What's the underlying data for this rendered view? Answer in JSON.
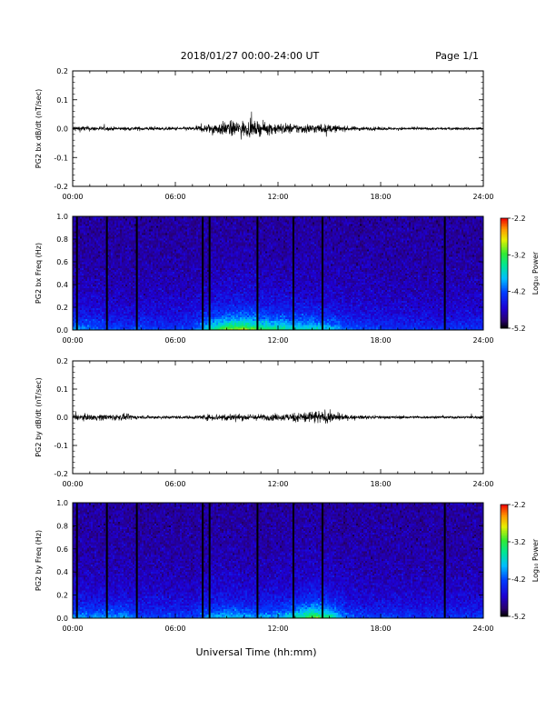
{
  "header": {
    "date_range": "2018/01/27  00:00-24:00 UT",
    "page": "Page 1/1"
  },
  "x_axis": {
    "ticks": [
      "00:00",
      "06:00",
      "12:00",
      "18:00",
      "24:00"
    ],
    "label": "Universal Time (hh:mm)"
  },
  "chart_data": [
    {
      "type": "line",
      "ylabel": "PG2 bx dB/dt (nT/sec)",
      "ylim": [
        -0.2,
        0.2
      ],
      "yticks": [
        "0.2",
        "0.1",
        "0.0",
        "-0.1",
        "-0.2"
      ],
      "xlim_hours": [
        0,
        24
      ],
      "series": [
        {
          "x_hours": [
            0,
            1,
            2,
            3,
            4,
            5,
            6,
            7,
            8,
            9,
            10,
            11,
            12,
            13,
            14,
            15,
            16,
            17,
            18,
            19,
            20,
            21,
            22,
            23,
            24
          ],
          "amplitude": [
            0.02,
            0.015,
            0.012,
            0.01,
            0.012,
            0.01,
            0.01,
            0.012,
            0.03,
            0.045,
            0.05,
            0.04,
            0.035,
            0.03,
            0.03,
            0.025,
            0.015,
            0.012,
            0.01,
            0.008,
            0.008,
            0.008,
            0.008,
            0.008,
            0.008
          ]
        }
      ]
    },
    {
      "type": "heatmap",
      "ylabel": "PG2 bx Freq (Hz)",
      "ylim": [
        0.0,
        1.0
      ],
      "yticks": [
        "1.0",
        "0.8",
        "0.6",
        "0.4",
        "0.2",
        "0.0"
      ],
      "xlim_hours": [
        0,
        24
      ],
      "colorbar": {
        "label": "Log₁₀ Power",
        "ticks": [
          "-2.2",
          "-3.2",
          "-4.2",
          "-5.2"
        ],
        "range": [
          -5.2,
          -2.2
        ]
      },
      "gap_lines_hours": [
        0.25,
        2,
        3.75,
        7.6,
        8,
        10.8,
        12.9,
        14.6,
        21.75
      ]
    },
    {
      "type": "line",
      "ylabel": "PG2 by dB/dt (nT/sec)",
      "ylim": [
        -0.2,
        0.2
      ],
      "yticks": [
        "0.2",
        "0.1",
        "0.0",
        "-0.1",
        "-0.2"
      ],
      "xlim_hours": [
        0,
        24
      ],
      "series": [
        {
          "x_hours": [
            0,
            1,
            2,
            3,
            4,
            5,
            6,
            7,
            8,
            9,
            10,
            11,
            12,
            13,
            14,
            15,
            16,
            17,
            18,
            19,
            20,
            21,
            22,
            23,
            24
          ],
          "amplitude": [
            0.02,
            0.018,
            0.02,
            0.02,
            0.01,
            0.01,
            0.01,
            0.01,
            0.02,
            0.025,
            0.02,
            0.02,
            0.02,
            0.03,
            0.045,
            0.035,
            0.015,
            0.01,
            0.01,
            0.01,
            0.008,
            0.008,
            0.008,
            0.008,
            0.01
          ]
        }
      ]
    },
    {
      "type": "heatmap",
      "ylabel": "PG2 by Freq (Hz)",
      "ylim": [
        0.0,
        1.0
      ],
      "yticks": [
        "1.0",
        "0.8",
        "0.6",
        "0.4",
        "0.2",
        "0.0"
      ],
      "xlim_hours": [
        0,
        24
      ],
      "colorbar": {
        "label": "Log₁₀ Power",
        "ticks": [
          "-2.2",
          "-3.2",
          "-4.2",
          "-5.2"
        ],
        "range": [
          -5.2,
          -2.2
        ]
      },
      "gap_lines_hours": [
        0.25,
        2,
        3.75,
        7.6,
        8,
        10.8,
        12.9,
        14.6,
        21.75
      ]
    }
  ]
}
